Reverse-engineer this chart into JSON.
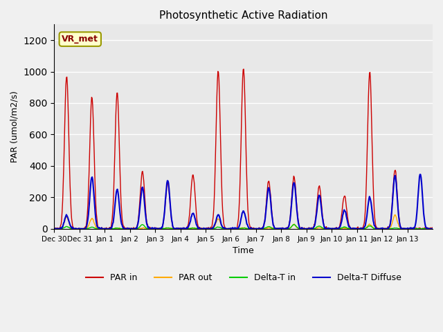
{
  "title": "Photosynthetic Active Radiation",
  "ylabel": "PAR (umol/m2/s)",
  "xlabel": "Time",
  "ylim": [
    0,
    1300
  ],
  "yticks": [
    0,
    200,
    400,
    600,
    800,
    1000,
    1200
  ],
  "xtick_labels": [
    "Dec 30",
    "Dec 31",
    "Jan 1",
    "Jan 2",
    "Jan 3",
    "Jan 4",
    "Jan 5",
    "Jan 6",
    "Jan 7",
    "Jan 8",
    "Jan 9",
    "Jan 10",
    "Jan 11",
    "Jan 12",
    "Jan 13"
  ],
  "bg_color": "#e8e8e8",
  "grid_color": "#ffffff",
  "legend_entries": [
    "PAR in",
    "PAR out",
    "Delta-T in",
    "Delta-T Diffuse"
  ],
  "legend_colors": [
    "#cc0000",
    "#ffaa00",
    "#00cc00",
    "#0000cc"
  ],
  "label_box_text": "VR_met",
  "label_box_color": "#ffffcc",
  "label_box_border": "#999900",
  "label_text_color": "#880000",
  "n_days": 15,
  "par_in_day_peaks": [
    975,
    840,
    870,
    365,
    295,
    345,
    1010,
    1025,
    305,
    335,
    273,
    210,
    1000,
    375,
    0
  ],
  "par_out_day_peaks": [
    75,
    68,
    5,
    5,
    5,
    5,
    63,
    5,
    5,
    27,
    5,
    5,
    28,
    88,
    0
  ],
  "delta_tin_day_peaks": [
    14,
    10,
    5,
    27,
    5,
    5,
    11,
    5,
    14,
    27,
    18,
    12,
    19,
    5,
    0
  ],
  "delta_dif_day_peaks": [
    85,
    330,
    250,
    265,
    310,
    100,
    90,
    115,
    260,
    295,
    215,
    120,
    200,
    340,
    350
  ]
}
